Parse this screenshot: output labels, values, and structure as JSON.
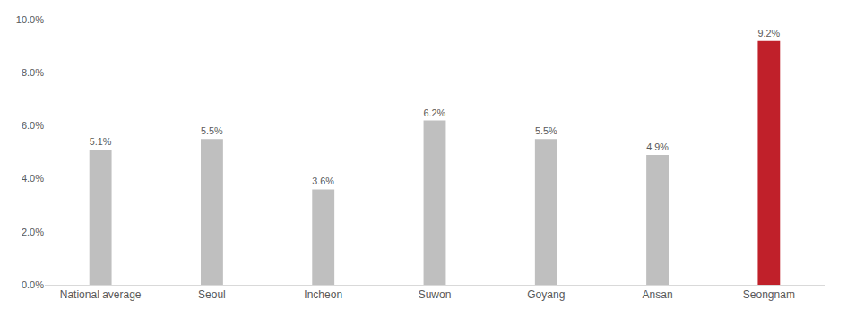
{
  "chart_data": {
    "type": "bar",
    "categories": [
      "National average",
      "Seoul",
      "Incheon",
      "Suwon",
      "Goyang",
      "Ansan",
      "Seongnam"
    ],
    "values": [
      5.1,
      5.5,
      3.6,
      6.2,
      5.5,
      4.9,
      9.2
    ],
    "value_labels": [
      "5.1%",
      "5.5%",
      "3.6%",
      "6.2%",
      "5.5%",
      "4.9%",
      "9.2%"
    ],
    "colors": [
      "#bfbfbf",
      "#bfbfbf",
      "#bfbfbf",
      "#bfbfbf",
      "#bfbfbf",
      "#bfbfbf",
      "#c0202a"
    ],
    "ylim": [
      0,
      10
    ],
    "yticks": [
      {
        "value": 0,
        "label": "0.0%"
      },
      {
        "value": 2,
        "label": "2.0%"
      },
      {
        "value": 4,
        "label": "4.0%"
      },
      {
        "value": 6,
        "label": "6.0%"
      },
      {
        "value": 8,
        "label": "8.0%"
      },
      {
        "value": 10,
        "label": "10.0%"
      }
    ],
    "grid": false,
    "data_labels": true
  }
}
